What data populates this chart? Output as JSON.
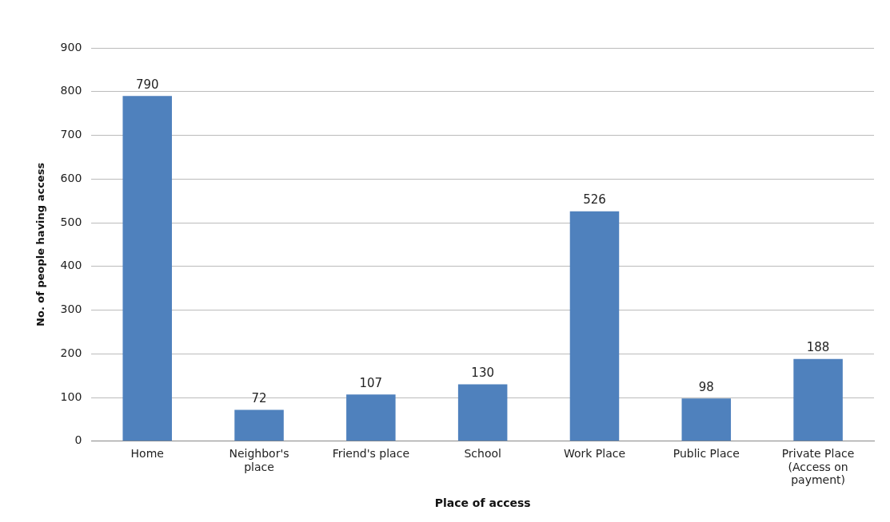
{
  "chart_data": {
    "type": "bar",
    "xlabel": "Place of access",
    "ylabel": "No. of people having access",
    "categories": [
      "Home",
      "Neighbor's place",
      "Friend's place",
      "School",
      "Work Place",
      "Public Place",
      "Private Place (Access on payment)"
    ],
    "values": [
      790,
      72,
      107,
      130,
      526,
      98,
      188
    ],
    "color": "#4f81bd",
    "ylim": [
      0,
      900
    ],
    "yticks": [
      0,
      100,
      200,
      300,
      400,
      500,
      600,
      700,
      800,
      900
    ],
    "grid": "y",
    "data_labels": true,
    "legend": false
  }
}
